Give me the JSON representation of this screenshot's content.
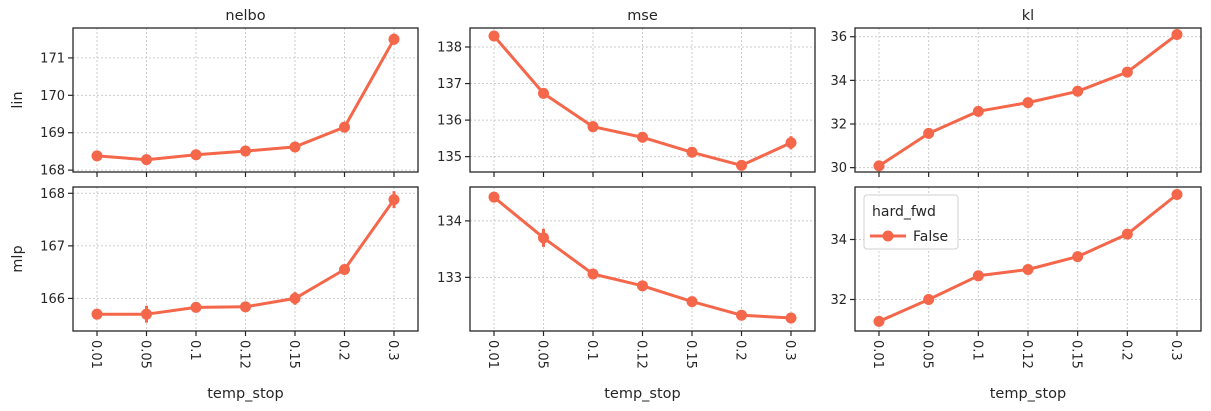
{
  "chart_data": {
    "type": "line",
    "series_color": "#f4674a",
    "grid": true,
    "x_categories": [
      "0.01",
      "0.05",
      "0.1",
      "0.12",
      "0.15",
      "0.2",
      "0.3"
    ],
    "xlabel": "temp_stop",
    "column_titles": [
      "nelbo",
      "mse",
      "kl"
    ],
    "row_labels": [
      "lin",
      "mlp"
    ],
    "legend": {
      "title": "hard_fwd",
      "entries": [
        "False"
      ],
      "placement": "upper-left of bottom-right panel"
    },
    "panels": [
      {
        "row": 0,
        "col": 0,
        "ylim": [
          167.95,
          171.8
        ],
        "yticks": [
          168,
          169,
          170,
          171
        ],
        "values": [
          168.38,
          168.28,
          168.41,
          168.51,
          168.62,
          169.15,
          171.5
        ],
        "err": [
          0.06,
          0.05,
          0.05,
          0.05,
          0.06,
          0.08,
          0.15
        ]
      },
      {
        "row": 0,
        "col": 1,
        "ylim": [
          134.58,
          138.52
        ],
        "yticks": [
          135,
          136,
          137,
          138
        ],
        "values": [
          138.3,
          136.73,
          135.82,
          135.53,
          135.12,
          134.76,
          135.38
        ],
        "err": [
          0.08,
          0.1,
          0.06,
          0.06,
          0.06,
          0.06,
          0.18
        ]
      },
      {
        "row": 0,
        "col": 2,
        "ylim": [
          29.8,
          36.4
        ],
        "yticks": [
          30,
          32,
          34,
          36
        ],
        "values": [
          30.08,
          31.57,
          32.58,
          32.98,
          33.5,
          34.38,
          36.1
        ],
        "err": [
          0.08,
          0.08,
          0.08,
          0.08,
          0.08,
          0.08,
          0.12
        ]
      },
      {
        "row": 1,
        "col": 0,
        "ylim": [
          165.38,
          168.12
        ],
        "yticks": [
          166,
          167,
          168
        ],
        "values": [
          165.7,
          165.7,
          165.83,
          165.84,
          166.0,
          166.55,
          167.88
        ],
        "err": [
          0.05,
          0.16,
          0.06,
          0.06,
          0.12,
          0.06,
          0.16
        ]
      },
      {
        "row": 1,
        "col": 1,
        "ylim": [
          132.05,
          134.6
        ],
        "yticks": [
          133,
          134
        ],
        "values": [
          134.42,
          133.7,
          133.06,
          132.85,
          132.57,
          132.33,
          132.28
        ],
        "err": [
          0.04,
          0.16,
          0.05,
          0.05,
          0.07,
          0.05,
          0.06
        ]
      },
      {
        "row": 1,
        "col": 2,
        "ylim": [
          30.95,
          35.75
        ],
        "yticks": [
          32,
          34
        ],
        "values": [
          31.27,
          32.0,
          32.79,
          33.0,
          33.43,
          34.18,
          35.5
        ],
        "err": [
          0.06,
          0.08,
          0.08,
          0.06,
          0.06,
          0.06,
          0.1
        ]
      }
    ]
  }
}
